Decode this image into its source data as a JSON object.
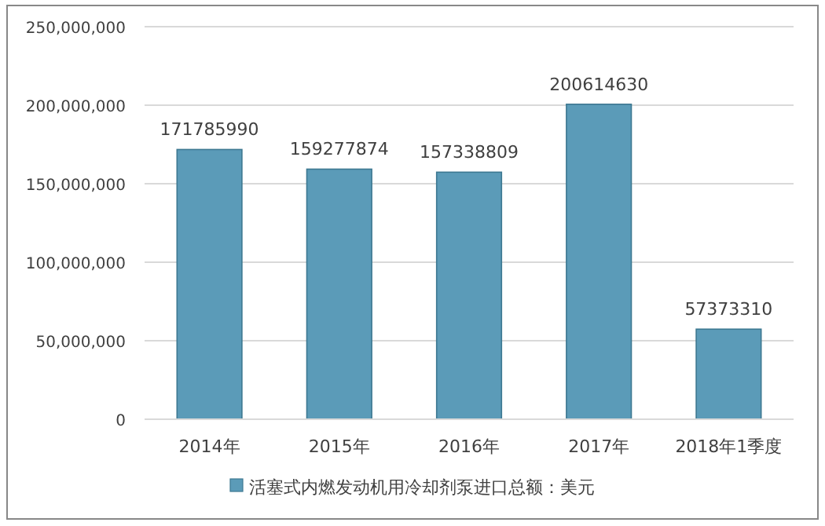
{
  "chart_data": {
    "type": "bar",
    "categories": [
      "2014年",
      "2015年",
      "2016年",
      "2017年",
      "2018年1季度"
    ],
    "series": [
      {
        "name": "活塞式内燃发动机用冷却剂泵进口总额：美元",
        "color": "#5b9bb8",
        "values": [
          171785990,
          159277874,
          157338809,
          200614630,
          57373310
        ]
      }
    ],
    "ylim": [
      0,
      250000000
    ],
    "yticks": [
      {
        "value": 0,
        "label": "0"
      },
      {
        "value": 50000000,
        "label": "50,000,000"
      },
      {
        "value": 100000000,
        "label": "100,000,000"
      },
      {
        "value": 150000000,
        "label": "150,000,000"
      },
      {
        "value": 200000000,
        "label": "200,000,000"
      },
      {
        "value": 250000000,
        "label": "250,000,000"
      }
    ],
    "grid": "y",
    "legend": "bottom",
    "data_labels": true
  }
}
